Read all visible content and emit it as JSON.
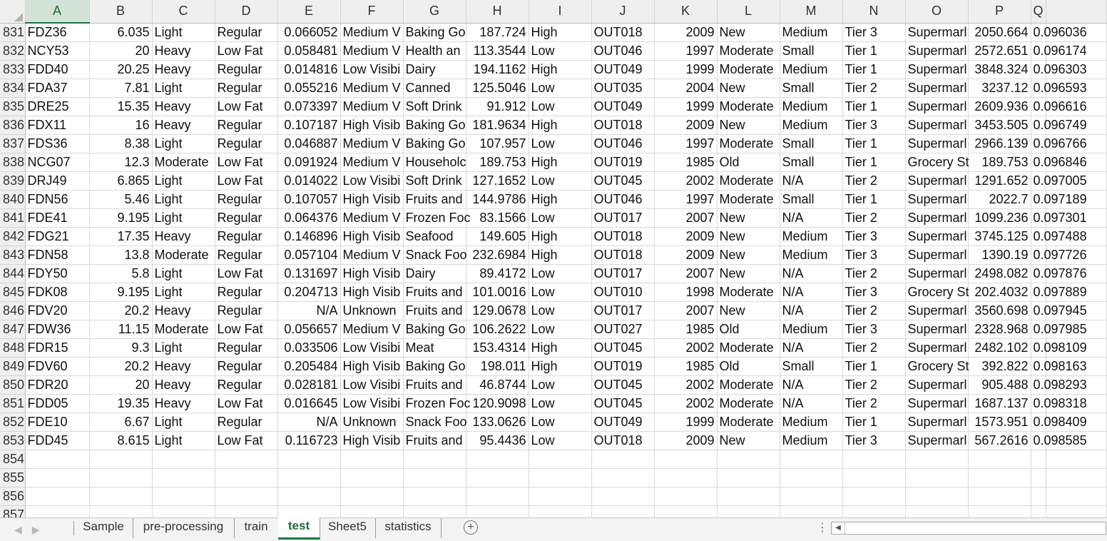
{
  "columns": [
    "A",
    "B",
    "C",
    "D",
    "E",
    "F",
    "G",
    "H",
    "I",
    "J",
    "K",
    "L",
    "M",
    "N",
    "O",
    "P",
    "Q"
  ],
  "active_column": "A",
  "rows": [
    {
      "n": "831",
      "cells": [
        "FDZ36",
        "6.035",
        "Light",
        "Regular",
        "0.066052",
        "Medium V",
        "Baking Go",
        "187.724",
        "High",
        "OUT018",
        "2009",
        "New",
        "Medium",
        "Tier 3",
        "Supermarl",
        "2050.664",
        "0.096036"
      ]
    },
    {
      "n": "832",
      "cells": [
        "NCY53",
        "20",
        "Heavy",
        "Low Fat",
        "0.058481",
        "Medium V",
        "Health an",
        "113.3544",
        "Low",
        "OUT046",
        "1997",
        "Moderate",
        "Small",
        "Tier 1",
        "Supermarl",
        "2572.651",
        "0.096174"
      ]
    },
    {
      "n": "833",
      "cells": [
        "FDD40",
        "20.25",
        "Heavy",
        "Regular",
        "0.014816",
        "Low Visibi",
        "Dairy",
        "194.1162",
        "High",
        "OUT049",
        "1999",
        "Moderate",
        "Medium",
        "Tier 1",
        "Supermarl",
        "3848.324",
        "0.096303"
      ]
    },
    {
      "n": "834",
      "cells": [
        "FDA37",
        "7.81",
        "Light",
        "Regular",
        "0.055216",
        "Medium V",
        "Canned",
        "125.5046",
        "Low",
        "OUT035",
        "2004",
        "New",
        "Small",
        "Tier 2",
        "Supermarl",
        "3237.12",
        "0.096593"
      ]
    },
    {
      "n": "835",
      "cells": [
        "DRE25",
        "15.35",
        "Heavy",
        "Low Fat",
        "0.073397",
        "Medium V",
        "Soft Drink",
        "91.912",
        "Low",
        "OUT049",
        "1999",
        "Moderate",
        "Medium",
        "Tier 1",
        "Supermarl",
        "2609.936",
        "0.096616"
      ]
    },
    {
      "n": "836",
      "cells": [
        "FDX11",
        "16",
        "Heavy",
        "Regular",
        "0.107187",
        "High Visib",
        "Baking Go",
        "181.9634",
        "High",
        "OUT018",
        "2009",
        "New",
        "Medium",
        "Tier 3",
        "Supermarl",
        "3453.505",
        "0.096749"
      ]
    },
    {
      "n": "837",
      "cells": [
        "FDS36",
        "8.38",
        "Light",
        "Regular",
        "0.046887",
        "Medium V",
        "Baking Go",
        "107.957",
        "Low",
        "OUT046",
        "1997",
        "Moderate",
        "Small",
        "Tier 1",
        "Supermarl",
        "2966.139",
        "0.096766"
      ]
    },
    {
      "n": "838",
      "cells": [
        "NCG07",
        "12.3",
        "Moderate",
        "Low Fat",
        "0.091924",
        "Medium V",
        "Householc",
        "189.753",
        "High",
        "OUT019",
        "1985",
        "Old",
        "Small",
        "Tier 1",
        "Grocery St",
        "189.753",
        "0.096846"
      ]
    },
    {
      "n": "839",
      "cells": [
        "DRJ49",
        "6.865",
        "Light",
        "Low Fat",
        "0.014022",
        "Low Visibi",
        "Soft Drink",
        "127.1652",
        "Low",
        "OUT045",
        "2002",
        "Moderate",
        "N/A",
        "Tier 2",
        "Supermarl",
        "1291.652",
        "0.097005"
      ]
    },
    {
      "n": "840",
      "cells": [
        "FDN56",
        "5.46",
        "Light",
        "Regular",
        "0.107057",
        "High Visib",
        "Fruits and",
        "144.9786",
        "High",
        "OUT046",
        "1997",
        "Moderate",
        "Small",
        "Tier 1",
        "Supermarl",
        "2022.7",
        "0.097189"
      ]
    },
    {
      "n": "841",
      "cells": [
        "FDE41",
        "9.195",
        "Light",
        "Regular",
        "0.064376",
        "Medium V",
        "Frozen Foc",
        "83.1566",
        "Low",
        "OUT017",
        "2007",
        "New",
        "N/A",
        "Tier 2",
        "Supermarl",
        "1099.236",
        "0.097301"
      ]
    },
    {
      "n": "842",
      "cells": [
        "FDG21",
        "17.35",
        "Heavy",
        "Regular",
        "0.146896",
        "High Visib",
        "Seafood",
        "149.605",
        "High",
        "OUT018",
        "2009",
        "New",
        "Medium",
        "Tier 3",
        "Supermarl",
        "3745.125",
        "0.097488"
      ]
    },
    {
      "n": "843",
      "cells": [
        "FDN58",
        "13.8",
        "Moderate",
        "Regular",
        "0.057104",
        "Medium V",
        "Snack Foo",
        "232.6984",
        "High",
        "OUT018",
        "2009",
        "New",
        "Medium",
        "Tier 3",
        "Supermarl",
        "1390.19",
        "0.097726"
      ]
    },
    {
      "n": "844",
      "cells": [
        "FDY50",
        "5.8",
        "Light",
        "Low Fat",
        "0.131697",
        "High Visib",
        "Dairy",
        "89.4172",
        "Low",
        "OUT017",
        "2007",
        "New",
        "N/A",
        "Tier 2",
        "Supermarl",
        "2498.082",
        "0.097876"
      ]
    },
    {
      "n": "845",
      "cells": [
        "FDK08",
        "9.195",
        "Light",
        "Regular",
        "0.204713",
        "High Visib",
        "Fruits and",
        "101.0016",
        "Low",
        "OUT010",
        "1998",
        "Moderate",
        "N/A",
        "Tier 3",
        "Grocery St",
        "202.4032",
        "0.097889"
      ]
    },
    {
      "n": "846",
      "cells": [
        "FDV20",
        "20.2",
        "Heavy",
        "Regular",
        "N/A",
        "Unknown",
        "Fruits and",
        "129.0678",
        "Low",
        "OUT017",
        "2007",
        "New",
        "N/A",
        "Tier 2",
        "Supermarl",
        "3560.698",
        "0.097945"
      ]
    },
    {
      "n": "847",
      "cells": [
        "FDW36",
        "11.15",
        "Moderate",
        "Low Fat",
        "0.056657",
        "Medium V",
        "Baking Go",
        "106.2622",
        "Low",
        "OUT027",
        "1985",
        "Old",
        "Medium",
        "Tier 3",
        "Supermarl",
        "2328.968",
        "0.097985"
      ]
    },
    {
      "n": "848",
      "cells": [
        "FDR15",
        "9.3",
        "Light",
        "Regular",
        "0.033506",
        "Low Visibi",
        "Meat",
        "153.4314",
        "High",
        "OUT045",
        "2002",
        "Moderate",
        "N/A",
        "Tier 2",
        "Supermarl",
        "2482.102",
        "0.098109"
      ]
    },
    {
      "n": "849",
      "cells": [
        "FDV60",
        "20.2",
        "Heavy",
        "Regular",
        "0.205484",
        "High Visib",
        "Baking Go",
        "198.011",
        "High",
        "OUT019",
        "1985",
        "Old",
        "Small",
        "Tier 1",
        "Grocery St",
        "392.822",
        "0.098163"
      ]
    },
    {
      "n": "850",
      "cells": [
        "FDR20",
        "20",
        "Heavy",
        "Regular",
        "0.028181",
        "Low Visibi",
        "Fruits and",
        "46.8744",
        "Low",
        "OUT045",
        "2002",
        "Moderate",
        "N/A",
        "Tier 2",
        "Supermarl",
        "905.488",
        "0.098293"
      ]
    },
    {
      "n": "851",
      "cells": [
        "FDD05",
        "19.35",
        "Heavy",
        "Low Fat",
        "0.016645",
        "Low Visibi",
        "Frozen Foc",
        "120.9098",
        "Low",
        "OUT045",
        "2002",
        "Moderate",
        "N/A",
        "Tier 2",
        "Supermarl",
        "1687.137",
        "0.098318"
      ]
    },
    {
      "n": "852",
      "cells": [
        "FDE10",
        "6.67",
        "Light",
        "Regular",
        "N/A",
        "Unknown",
        "Snack Foo",
        "133.0626",
        "Low",
        "OUT049",
        "1999",
        "Moderate",
        "Medium",
        "Tier 1",
        "Supermarl",
        "1573.951",
        "0.098409"
      ]
    },
    {
      "n": "853",
      "cells": [
        "FDD45",
        "8.615",
        "Light",
        "Low Fat",
        "0.116723",
        "High Visib",
        "Fruits and",
        "95.4436",
        "Low",
        "OUT018",
        "2009",
        "New",
        "Medium",
        "Tier 3",
        "Supermarl",
        "567.2616",
        "0.098585"
      ]
    },
    {
      "n": "854",
      "cells": [
        "",
        "",
        "",
        "",
        "",
        "",
        "",
        "",
        "",
        "",
        "",
        "",
        "",
        "",
        "",
        "",
        ""
      ]
    },
    {
      "n": "855",
      "cells": [
        "",
        "",
        "",
        "",
        "",
        "",
        "",
        "",
        "",
        "",
        "",
        "",
        "",
        "",
        "",
        "",
        ""
      ]
    },
    {
      "n": "856",
      "cells": [
        "",
        "",
        "",
        "",
        "",
        "",
        "",
        "",
        "",
        "",
        "",
        "",
        "",
        "",
        "",
        "",
        ""
      ]
    },
    {
      "n": "857",
      "cells": [
        "",
        "",
        "",
        "",
        "",
        "",
        "",
        "",
        "",
        "",
        "",
        "",
        "",
        "",
        "",
        "",
        ""
      ]
    }
  ],
  "numeric_columns": [
    "B",
    "E",
    "H",
    "K",
    "P",
    "Q"
  ],
  "sheet_tabs": [
    {
      "label": "Sample",
      "active": false
    },
    {
      "label": "pre-processing",
      "active": false
    },
    {
      "label": "train",
      "active": false
    },
    {
      "label": "test",
      "active": true
    },
    {
      "label": "Sheet5",
      "active": false
    },
    {
      "label": "statistics",
      "active": false
    }
  ],
  "icons": {
    "prev_sheet": "triangle-left-icon",
    "next_sheet": "triangle-right-icon",
    "add_sheet": "plus-circle-icon",
    "options": "vertical-dots-icon"
  },
  "colors": {
    "accent": "#217346",
    "header_bg": "#efefef",
    "grid_line": "#dadada"
  }
}
